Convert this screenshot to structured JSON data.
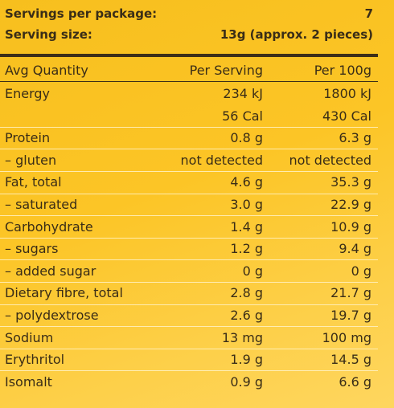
{
  "summary": {
    "servings_label": "Servings per package:",
    "servings_value": "7",
    "size_label": "Serving size:",
    "size_value": "13g (approx. 2 pieces)"
  },
  "columns": [
    "Avg Quantity",
    "Per Serving",
    "Per 100g"
  ],
  "rows": [
    [
      "Energy",
      "234 kJ",
      "1800 kJ"
    ],
    [
      "",
      "56 Cal",
      "430 Cal"
    ],
    [
      "Protein",
      "0.8 g",
      "6.3 g"
    ],
    [
      "– gluten",
      "not detected",
      "not detected"
    ],
    [
      "Fat, total",
      "4.6 g",
      "35.3 g"
    ],
    [
      "– saturated",
      "3.0 g",
      "22.9 g"
    ],
    [
      "Carbohydrate",
      "1.4 g",
      "10.9 g"
    ],
    [
      "– sugars",
      "1.2 g",
      "9.4 g"
    ],
    [
      "– added sugar",
      "0 g",
      "0 g"
    ],
    [
      "Dietary fibre, total",
      "2.8 g",
      "21.7 g"
    ],
    [
      "– polydextrose",
      "2.6 g",
      "19.7 g"
    ],
    [
      "Sodium",
      "13 mg",
      "100 mg"
    ],
    [
      "Erythritol",
      "1.9 g",
      "14.5 g"
    ],
    [
      "Isomalt",
      "0.9 g",
      "6.6 g"
    ]
  ]
}
